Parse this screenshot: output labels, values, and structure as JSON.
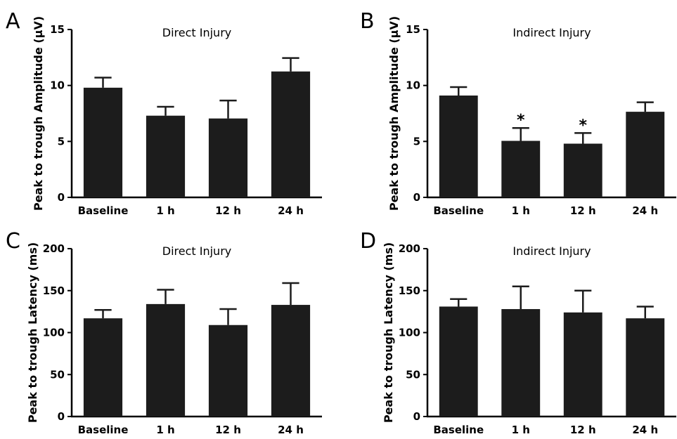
{
  "chart_data": [
    {
      "panel": "A",
      "type": "bar",
      "title": "Direct Injury",
      "ylabel": "Peak to trough Amplitude (µV)",
      "categories": [
        "Baseline",
        "1 h",
        "12 h",
        "24 h"
      ],
      "values": [
        9.8,
        7.3,
        7.05,
        11.25
      ],
      "errors": [
        0.9,
        0.8,
        1.6,
        1.2
      ],
      "annotations": [
        "",
        "",
        "",
        ""
      ],
      "ylim": [
        0,
        15
      ],
      "yticks": [
        0,
        5,
        10,
        15
      ],
      "color": "#1c1c1c"
    },
    {
      "panel": "B",
      "type": "bar",
      "title": "Indirect Injury",
      "ylabel": "Peak to trough Amplitude (µV)",
      "categories": [
        "Baseline",
        "1 h",
        "12 h",
        "24 h"
      ],
      "values": [
        9.1,
        5.05,
        4.8,
        7.65
      ],
      "errors": [
        0.75,
        1.15,
        0.95,
        0.85
      ],
      "annotations": [
        "",
        "*",
        "*",
        ""
      ],
      "ylim": [
        0,
        15
      ],
      "yticks": [
        0,
        5,
        10,
        15
      ],
      "color": "#1c1c1c"
    },
    {
      "panel": "C",
      "type": "bar",
      "title": "Direct Injury",
      "ylabel": "Peak to trough Latency (ms)",
      "categories": [
        "Baseline",
        "1 h",
        "12 h",
        "24 h"
      ],
      "values": [
        117,
        134,
        109,
        133
      ],
      "errors": [
        10,
        17,
        19,
        26
      ],
      "annotations": [
        "",
        "",
        "",
        ""
      ],
      "ylim": [
        0,
        200
      ],
      "yticks": [
        0,
        50,
        100,
        150,
        200
      ],
      "color": "#1c1c1c"
    },
    {
      "panel": "D",
      "type": "bar",
      "title": "Indirect Injury",
      "ylabel": "Peak to trough Latency (ms)",
      "categories": [
        "Baseline",
        "1 h",
        "12 h",
        "24 h"
      ],
      "values": [
        131,
        128,
        124,
        117
      ],
      "errors": [
        9,
        27,
        26,
        14
      ],
      "annotations": [
        "",
        "",
        "",
        ""
      ],
      "ylim": [
        0,
        200
      ],
      "yticks": [
        0,
        50,
        100,
        150,
        200
      ],
      "color": "#1c1c1c"
    }
  ]
}
